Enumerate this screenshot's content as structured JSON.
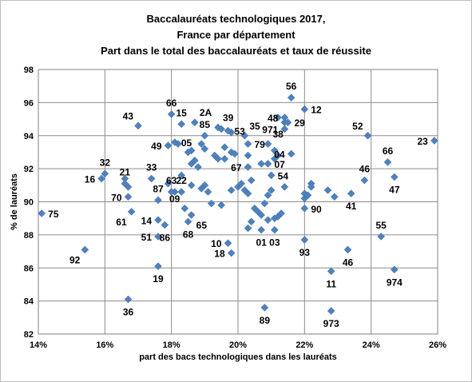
{
  "chart_data": {
    "type": "scatter",
    "title": [
      "Baccalauréats technologiques 2017,",
      "France par département",
      "Part dans le total des baccalauréats et taux de réussite"
    ],
    "xlabel": "part des bacs  technologiques  dans les lauréats",
    "ylabel": "% de lauréats",
    "xlim": [
      14,
      26
    ],
    "ylim": [
      82,
      98
    ],
    "x_ticks": [
      14,
      16,
      18,
      20,
      22,
      24,
      26
    ],
    "x_tick_labels": [
      "14%",
      "16%",
      "18%",
      "20%",
      "22%",
      "24%",
      "26%"
    ],
    "y_ticks": [
      82,
      84,
      86,
      88,
      90,
      92,
      94,
      96,
      98
    ],
    "y_tick_labels": [
      "82",
      "84",
      "86",
      "88",
      "90",
      "92",
      "94",
      "96",
      "98"
    ],
    "grid": true,
    "marker_color": "#4f81bd",
    "labeled_points": [
      {
        "label": "75",
        "x": 14.1,
        "y": 89.3,
        "pos": "r"
      },
      {
        "label": "92",
        "x": 15.4,
        "y": 87.1,
        "pos": "bl"
      },
      {
        "label": "16",
        "x": 15.9,
        "y": 91.4,
        "pos": "l"
      },
      {
        "label": "32",
        "x": 16.0,
        "y": 91.7,
        "pos": "t"
      },
      {
        "label": "21",
        "x": 16.6,
        "y": 91.1,
        "pos": "t"
      },
      {
        "label": "70",
        "x": 16.7,
        "y": 90.3,
        "pos": "l"
      },
      {
        "label": "61",
        "x": 16.8,
        "y": 89.4,
        "pos": "bl"
      },
      {
        "label": "36",
        "x": 16.7,
        "y": 84.1,
        "pos": "b"
      },
      {
        "label": "43",
        "x": 17.0,
        "y": 94.6,
        "pos": "tl"
      },
      {
        "label": "33",
        "x": 17.4,
        "y": 91.4,
        "pos": "t"
      },
      {
        "label": "87",
        "x": 17.6,
        "y": 90.1,
        "pos": "t"
      },
      {
        "label": "14",
        "x": 17.6,
        "y": 88.9,
        "pos": "l"
      },
      {
        "label": "51",
        "x": 17.6,
        "y": 87.9,
        "pos": "l"
      },
      {
        "label": "19",
        "x": 17.6,
        "y": 86.1,
        "pos": "b"
      },
      {
        "label": "86",
        "x": 17.8,
        "y": 88.6,
        "pos": "b"
      },
      {
        "label": "63",
        "x": 18.0,
        "y": 90.6,
        "pos": "t"
      },
      {
        "label": "22",
        "x": 18.3,
        "y": 90.6,
        "pos": "t"
      },
      {
        "label": "09",
        "x": 18.4,
        "y": 89.6,
        "pos": "tl"
      },
      {
        "label": "65",
        "x": 18.6,
        "y": 89.2,
        "pos": "br"
      },
      {
        "label": "68",
        "x": 18.5,
        "y": 88.8,
        "pos": "b"
      },
      {
        "label": "66",
        "x": 18.0,
        "y": 95.3,
        "pos": "t"
      },
      {
        "label": "15",
        "x": 18.3,
        "y": 94.7,
        "pos": "t"
      },
      {
        "label": "2A",
        "x": 18.7,
        "y": 94.8,
        "pos": "tr"
      },
      {
        "label": "39",
        "x": 19.4,
        "y": 94.5,
        "pos": "tr"
      },
      {
        "label": "53",
        "x": 19.7,
        "y": 94.3,
        "pos": "r"
      },
      {
        "label": "85",
        "x": 19.0,
        "y": 94.0,
        "pos": "t"
      },
      {
        "label": "05",
        "x": 18.1,
        "y": 93.6,
        "pos": "r"
      },
      {
        "label": "49",
        "x": 17.9,
        "y": 93.4,
        "pos": "l"
      },
      {
        "label": "35",
        "x": 20.2,
        "y": 94.0,
        "pos": "tr"
      },
      {
        "label": "79",
        "x": 20.3,
        "y": 93.5,
        "pos": "r"
      },
      {
        "label": "67",
        "x": 20.3,
        "y": 92.1,
        "pos": "l"
      },
      {
        "label": "38",
        "x": 20.9,
        "y": 93.5,
        "pos": "tr"
      },
      {
        "label": "07",
        "x": 20.9,
        "y": 92.3,
        "pos": "r"
      },
      {
        "label": "48",
        "x": 21.4,
        "y": 95.1,
        "pos": "l"
      },
      {
        "label": "971",
        "x": 21.4,
        "y": 94.4,
        "pos": "l"
      },
      {
        "label": "29",
        "x": 21.5,
        "y": 94.8,
        "pos": "r"
      },
      {
        "label": "56",
        "x": 21.6,
        "y": 96.3,
        "pos": "t"
      },
      {
        "label": "12",
        "x": 22.0,
        "y": 95.6,
        "pos": "r"
      },
      {
        "label": "04",
        "x": 21.6,
        "y": 92.9,
        "pos": "l"
      },
      {
        "label": "54",
        "x": 21.0,
        "y": 91.6,
        "pos": "r"
      },
      {
        "label": "90",
        "x": 22.0,
        "y": 89.6,
        "pos": "r"
      },
      {
        "label": "01",
        "x": 20.7,
        "y": 88.3,
        "pos": "b"
      },
      {
        "label": "03",
        "x": 21.1,
        "y": 88.3,
        "pos": "b"
      },
      {
        "label": "10",
        "x": 19.7,
        "y": 87.5,
        "pos": "l"
      },
      {
        "label": "18",
        "x": 19.8,
        "y": 86.9,
        "pos": "l"
      },
      {
        "label": "93",
        "x": 22.0,
        "y": 87.7,
        "pos": "b"
      },
      {
        "label": "89",
        "x": 20.8,
        "y": 83.6,
        "pos": "b"
      },
      {
        "label": "973",
        "x": 22.8,
        "y": 83.4,
        "pos": "b"
      },
      {
        "label": "11",
        "x": 22.8,
        "y": 85.8,
        "pos": "b"
      },
      {
        "label": "46",
        "x": 23.3,
        "y": 87.1,
        "pos": "b"
      },
      {
        "label": "41",
        "x": 23.4,
        "y": 90.5,
        "pos": "b"
      },
      {
        "label": "46",
        "x": 23.8,
        "y": 91.3,
        "pos": "t"
      },
      {
        "label": "52",
        "x": 23.9,
        "y": 94.0,
        "pos": "tl"
      },
      {
        "label": "66",
        "x": 24.5,
        "y": 92.4,
        "pos": "t"
      },
      {
        "label": "47",
        "x": 24.7,
        "y": 91.5,
        "pos": "b"
      },
      {
        "label": "23",
        "x": 25.9,
        "y": 93.7,
        "pos": "l"
      },
      {
        "label": "55",
        "x": 24.3,
        "y": 87.9,
        "pos": "t"
      },
      {
        "label": "974",
        "x": 24.7,
        "y": 85.9,
        "pos": "b"
      }
    ],
    "other_points": [
      [
        16.6,
        91.4
      ],
      [
        16.7,
        90.9
      ],
      [
        17.9,
        91.1
      ],
      [
        18.1,
        90.6
      ],
      [
        18.3,
        91.6
      ],
      [
        18.6,
        91.0
      ],
      [
        18.6,
        92.3
      ],
      [
        18.7,
        92.5
      ],
      [
        18.8,
        92.1
      ],
      [
        18.9,
        93.5
      ],
      [
        19.0,
        93.2
      ],
      [
        18.6,
        93.1
      ],
      [
        18.9,
        90.8
      ],
      [
        19.0,
        91.0
      ],
      [
        19.1,
        90.6
      ],
      [
        19.3,
        92.8
      ],
      [
        19.4,
        92.6
      ],
      [
        19.6,
        92.6
      ],
      [
        19.6,
        93.3
      ],
      [
        19.8,
        93.0
      ],
      [
        19.8,
        94.2
      ],
      [
        19.5,
        94.4
      ],
      [
        19.9,
        92.9
      ],
      [
        20.3,
        92.8
      ],
      [
        19.2,
        89.9
      ],
      [
        19.5,
        89.8
      ],
      [
        19.8,
        90.7
      ],
      [
        20.0,
        90.9
      ],
      [
        20.1,
        91.1
      ],
      [
        20.2,
        90.7
      ],
      [
        20.3,
        90.5
      ],
      [
        20.4,
        91.3
      ],
      [
        20.5,
        89.6
      ],
      [
        20.6,
        89.4
      ],
      [
        20.7,
        89.2
      ],
      [
        20.8,
        89.9
      ],
      [
        20.9,
        90.4
      ],
      [
        21.0,
        90.7
      ],
      [
        21.1,
        89.0
      ],
      [
        21.2,
        89.1
      ],
      [
        21.3,
        89.3
      ],
      [
        21.4,
        90.9
      ],
      [
        20.9,
        88.9
      ],
      [
        20.4,
        88.8
      ],
      [
        20.3,
        88.4
      ],
      [
        20.7,
        92.3
      ],
      [
        21.2,
        92.8
      ],
      [
        22.2,
        91.1
      ],
      [
        22.2,
        90.9
      ],
      [
        22.0,
        90.2
      ],
      [
        22.0,
        90.5
      ],
      [
        22.1,
        90.4
      ],
      [
        22.7,
        90.7
      ],
      [
        22.9,
        90.3
      ],
      [
        21.1,
        93.1
      ],
      [
        21.1,
        92.6
      ],
      [
        21.2,
        95.1
      ],
      [
        21.4,
        94.8
      ],
      [
        18.2,
        93.5
      ],
      [
        18.5,
        93.0
      ]
    ]
  }
}
